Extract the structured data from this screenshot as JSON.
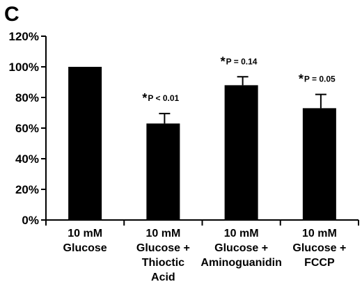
{
  "panel_label": "C",
  "chart_data": {
    "type": "bar",
    "categories": [
      [
        "10 mM",
        "Glucose"
      ],
      [
        "10 mM",
        "Glucose +",
        "Thioctic",
        "Acid"
      ],
      [
        "10 mM",
        "Glucose +",
        "Aminoguanidin"
      ],
      [
        "10 mM",
        "Glucose +",
        "FCCP"
      ]
    ],
    "values": [
      100,
      63,
      88,
      73
    ],
    "error_upper": [
      0,
      6.5,
      5.5,
      9
    ],
    "annotations": [
      null,
      {
        "star": "*",
        "text": "P < 0.01"
      },
      {
        "star": "*",
        "text": "P = 0.14"
      },
      {
        "star": "*",
        "text": "P = 0.05"
      }
    ],
    "yticks": [
      "0%",
      "20%",
      "40%",
      "60%",
      "80%",
      "100%",
      "120%"
    ],
    "ytick_values": [
      0,
      20,
      40,
      60,
      80,
      100,
      120
    ],
    "ylim": [
      0,
      120
    ],
    "bar_color": "#000000",
    "grid": false
  }
}
